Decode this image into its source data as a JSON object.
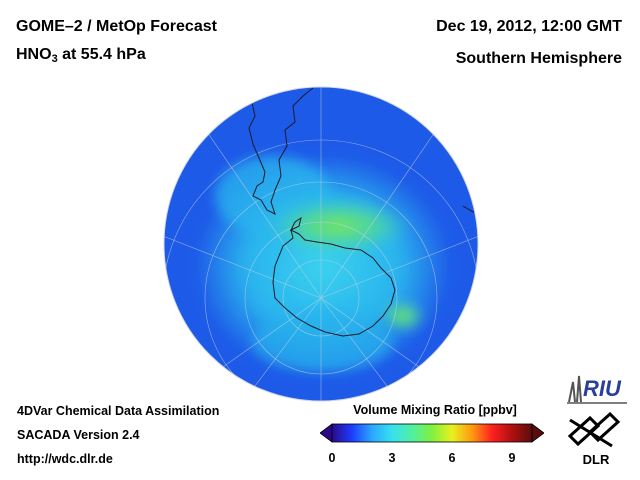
{
  "header": {
    "title_line1": "GOME–2 / MetOp Forecast",
    "species_main": "HNO",
    "species_sub": "3",
    "species_level": " at 55.4 hPa",
    "datetime": "Dec 19, 2012, 12:00 GMT",
    "region": "Southern Hemisphere"
  },
  "footer": {
    "line1": "4DVar Chemical Data Assimilation",
    "line2": "SACADA Version 2.4",
    "line3": "http://wdc.dlr.de"
  },
  "colorbar": {
    "title": "Volume Mixing Ratio [ppbv]",
    "min": 0,
    "max": 10,
    "ticks": [
      "0",
      "3",
      "6",
      "9"
    ],
    "tick_values": [
      0,
      3,
      6,
      9
    ],
    "colors": [
      "#2a0a8a",
      "#1e3cff",
      "#2aa8ff",
      "#38e0f0",
      "#50f0a0",
      "#80f040",
      "#e8f020",
      "#ff9a10",
      "#ff2020",
      "#b01010",
      "#5a0c0c"
    ]
  },
  "logos": {
    "riu_text": "RIU",
    "dlr_text": "DLR"
  },
  "map": {
    "projection": "orthographic",
    "hemisphere": "south",
    "ocean_color": "#1e5ae8",
    "field_color": "#2ab8ee",
    "peak_color": "#6ee06a"
  }
}
